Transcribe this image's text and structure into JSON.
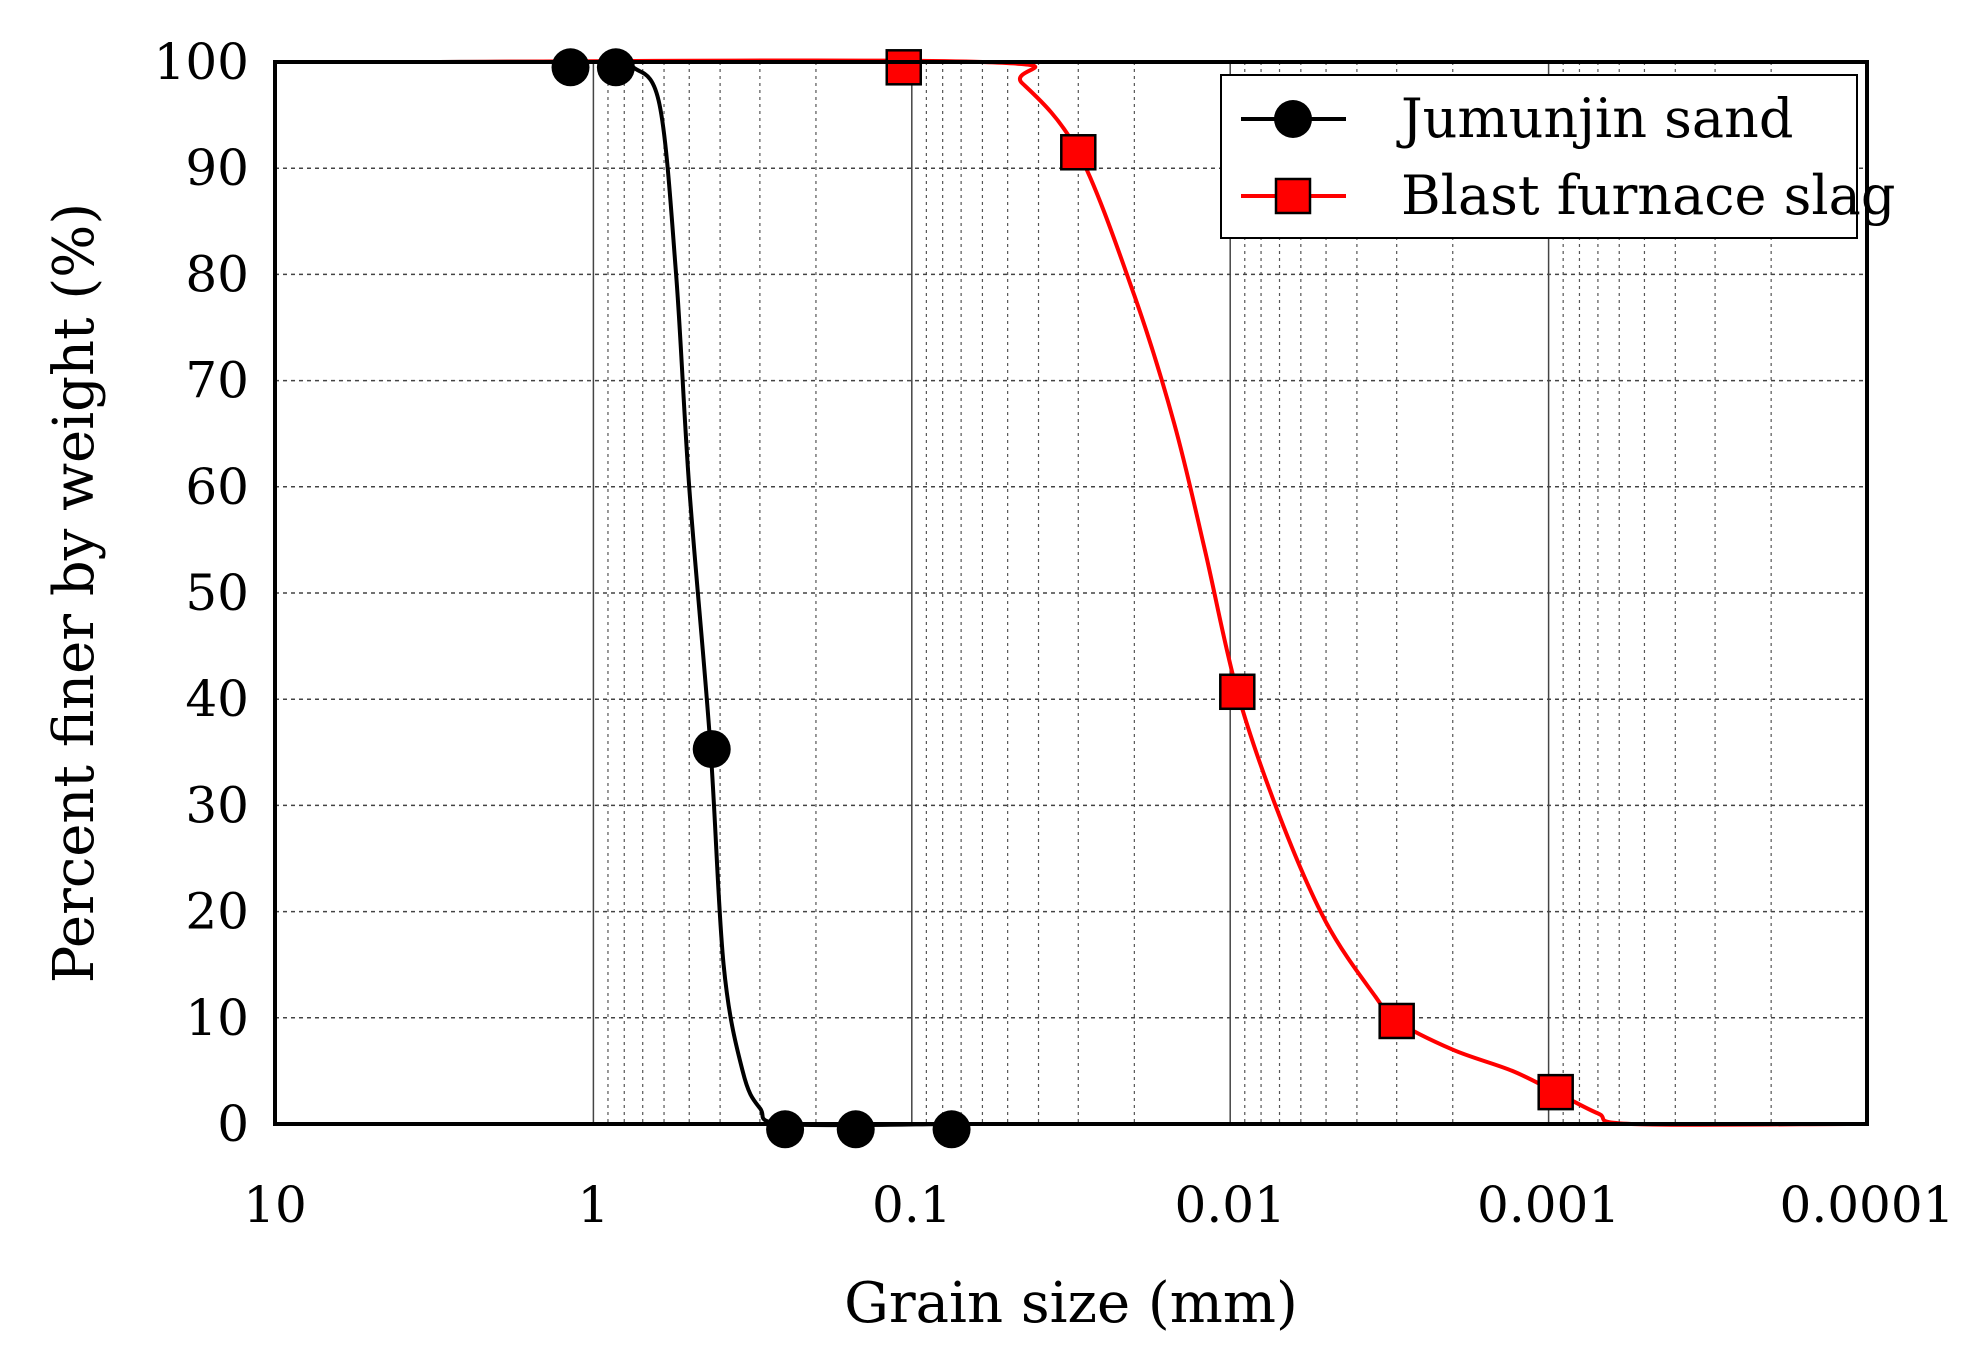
{
  "chart_data": {
    "type": "line",
    "title": "",
    "xlabel": "Grain size  (mm)",
    "ylabel": "Percent finer by weight  (%)",
    "x_scale": "log",
    "x_reversed": true,
    "xlim": [
      10,
      0.0001
    ],
    "ylim": [
      0,
      100
    ],
    "x_ticks": [
      10,
      1,
      0.1,
      0.01,
      0.001,
      0.0001
    ],
    "x_tick_labels": [
      "10",
      "1",
      "0.1",
      "0.01",
      "0.001",
      "0.0001"
    ],
    "y_ticks": [
      0,
      10,
      20,
      30,
      40,
      50,
      60,
      70,
      80,
      90,
      100
    ],
    "y_tick_labels": [
      "0",
      "10",
      "20",
      "30",
      "40",
      "50",
      "60",
      "70",
      "80",
      "90",
      "100"
    ],
    "grid": true,
    "legend_position": "top-right",
    "series": [
      {
        "name": "Jumunjin sand",
        "color": "#000000",
        "marker": "circle",
        "points": [
          {
            "x": 1.18,
            "y": 99.5
          },
          {
            "x": 0.85,
            "y": 99.5
          },
          {
            "x": 0.425,
            "y": 35.3
          },
          {
            "x": 0.25,
            "y": -0.5
          },
          {
            "x": 0.15,
            "y": -0.5
          },
          {
            "x": 0.075,
            "y": -0.5
          }
        ],
        "curve": [
          {
            "x": 3.5,
            "y": 100
          },
          {
            "x": 0.9,
            "y": 100
          },
          {
            "x": 0.75,
            "y": 99.5
          },
          {
            "x": 0.62,
            "y": 96
          },
          {
            "x": 0.55,
            "y": 80
          },
          {
            "x": 0.5,
            "y": 60
          },
          {
            "x": 0.43,
            "y": 36
          },
          {
            "x": 0.39,
            "y": 15
          },
          {
            "x": 0.34,
            "y": 5
          },
          {
            "x": 0.3,
            "y": 1.5
          },
          {
            "x": 0.25,
            "y": 0
          },
          {
            "x": 0.075,
            "y": 0
          }
        ]
      },
      {
        "name": "Blast furnace slag",
        "color": "#ff0000",
        "marker": "square",
        "points": [
          {
            "x": 0.106,
            "y": 99.5
          },
          {
            "x": 0.03,
            "y": 91.5
          },
          {
            "x": 0.0095,
            "y": 40.7
          },
          {
            "x": 0.003,
            "y": 9.7
          },
          {
            "x": 0.00095,
            "y": 3
          }
        ],
        "curve": [
          {
            "x": 3.5,
            "y": 100
          },
          {
            "x": 0.06,
            "y": 100
          },
          {
            "x": 0.045,
            "y": 98
          },
          {
            "x": 0.03,
            "y": 91.5
          },
          {
            "x": 0.02,
            "y": 78
          },
          {
            "x": 0.015,
            "y": 66
          },
          {
            "x": 0.012,
            "y": 54
          },
          {
            "x": 0.0095,
            "y": 40.7
          },
          {
            "x": 0.007,
            "y": 29
          },
          {
            "x": 0.005,
            "y": 19
          },
          {
            "x": 0.0035,
            "y": 12
          },
          {
            "x": 0.003,
            "y": 9.7
          },
          {
            "x": 0.002,
            "y": 7
          },
          {
            "x": 0.0013,
            "y": 5
          },
          {
            "x": 0.00095,
            "y": 3
          },
          {
            "x": 0.0007,
            "y": 1
          },
          {
            "x": 0.00055,
            "y": 0
          },
          {
            "x": 0.000115,
            "y": 0
          }
        ]
      }
    ]
  }
}
